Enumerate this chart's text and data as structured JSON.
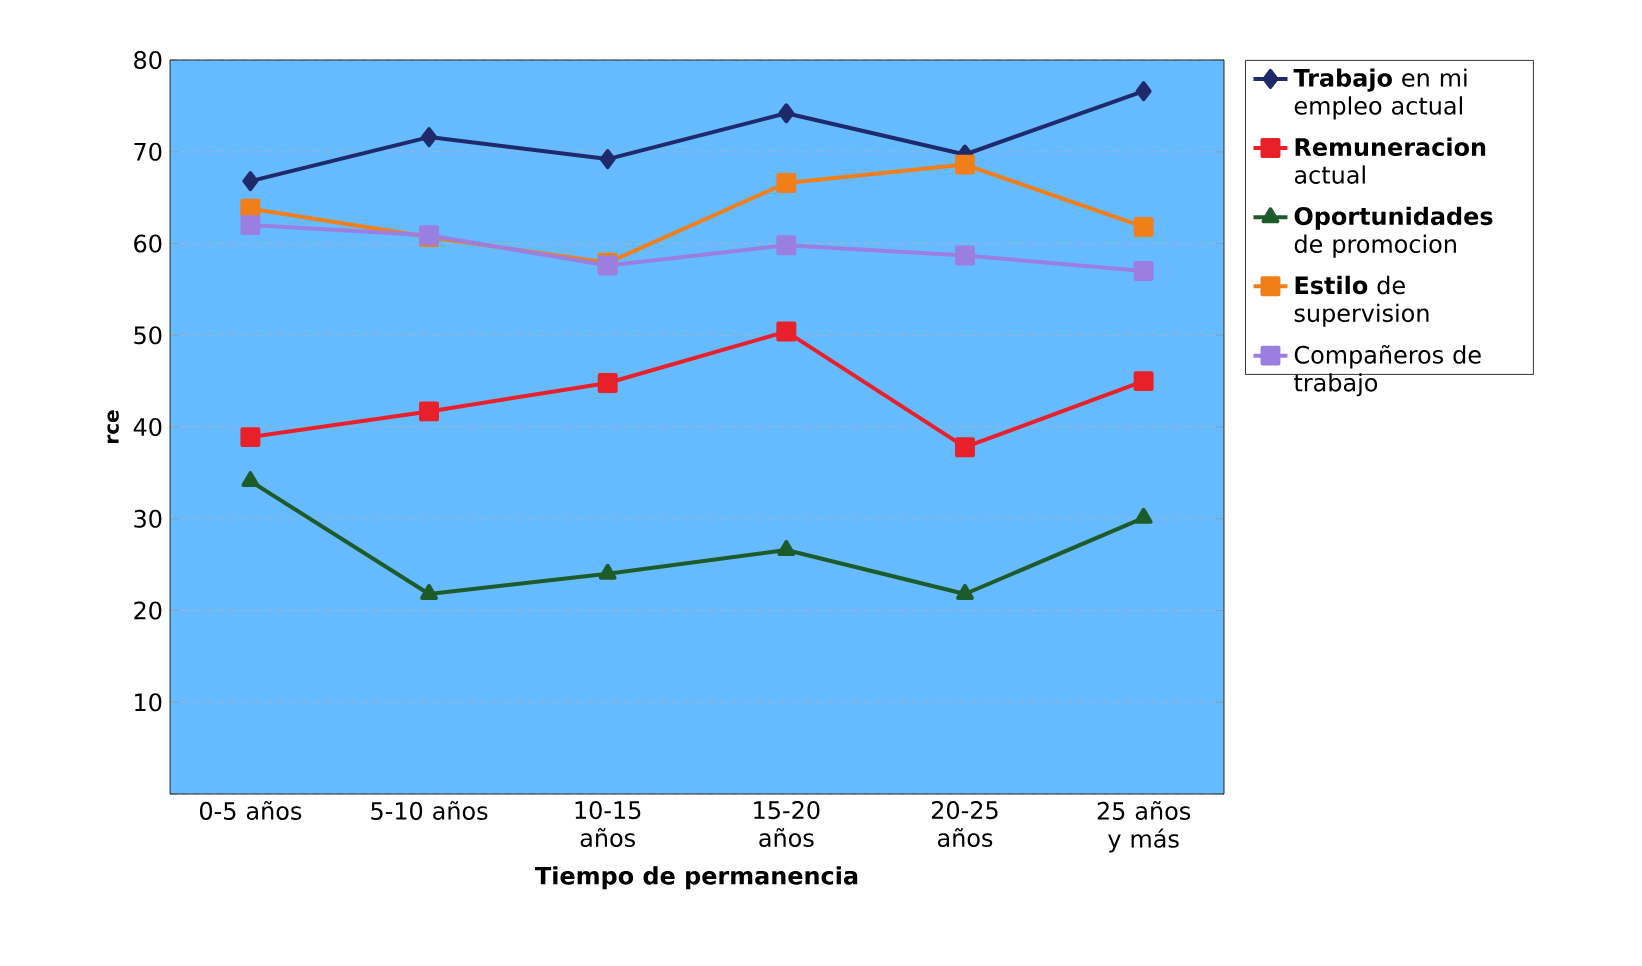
{
  "chart_data": {
    "type": "line",
    "xlabel": "Tiempo de permanencia",
    "ylabel": "rce",
    "categories": [
      "0-5 años",
      "5-10 años",
      "10-15 años",
      "15-20 años",
      "20-25 años",
      "25 años y más"
    ],
    "ylim": [
      0,
      80
    ],
    "yticks": [
      {
        "value": 0,
        "label": null
      },
      10,
      20,
      30,
      40,
      50,
      60,
      70,
      80
    ],
    "grid": "y",
    "legend": "right",
    "series": [
      {
        "name": "**Trabajo** en mi empleo actual",
        "color": "#1f2a6b",
        "marker": "diamond",
        "values": [
          66.8,
          71.6,
          69.2,
          74.2,
          69.7,
          76.6
        ]
      },
      {
        "name": "**Remuneracion** actual",
        "color": "#e8202a",
        "marker": "square",
        "values": [
          38.9,
          41.7,
          44.8,
          50.4,
          37.8,
          45.0
        ]
      },
      {
        "name": "**Oportunidades** de promocion",
        "color": "#1e5b2a",
        "marker": "triangle",
        "values": [
          34.1,
          21.8,
          24.0,
          26.6,
          21.8,
          30.1
        ]
      },
      {
        "name": "**Estilo** de supervision",
        "color": "#f07f1a",
        "marker": "square",
        "values": [
          63.8,
          60.7,
          57.9,
          66.6,
          68.6,
          61.8
        ]
      },
      {
        "name": "Compañeros de trabajo",
        "color": "#9b7fe0",
        "marker": "square",
        "values": [
          62.0,
          60.9,
          57.6,
          59.8,
          58.7,
          57.0
        ]
      }
    ]
  }
}
